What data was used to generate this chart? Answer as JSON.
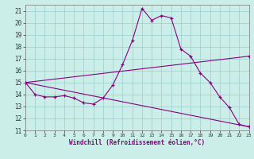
{
  "bg_color": "#cceee8",
  "line_color": "#880080",
  "grid_color": "#99cccc",
  "xlim": [
    0,
    23
  ],
  "ylim": [
    11,
    21.5
  ],
  "yticks": [
    11,
    12,
    13,
    14,
    15,
    16,
    17,
    18,
    19,
    20,
    21
  ],
  "xticks": [
    0,
    1,
    2,
    3,
    4,
    5,
    6,
    7,
    8,
    9,
    10,
    11,
    12,
    13,
    14,
    15,
    16,
    17,
    18,
    19,
    20,
    21,
    22,
    23
  ],
  "xlabel": "Windchill (Refroidissement éolien,°C)",
  "curve_x": [
    0,
    1,
    2,
    3,
    4,
    5,
    6,
    7,
    8,
    9,
    10,
    11,
    12,
    13,
    14,
    15,
    16,
    17,
    18,
    19,
    20,
    21,
    22,
    23
  ],
  "curve_y": [
    15.0,
    14.0,
    13.8,
    13.8,
    13.9,
    13.7,
    13.3,
    13.2,
    13.7,
    14.8,
    16.5,
    18.5,
    21.2,
    20.2,
    20.6,
    20.4,
    17.8,
    17.2,
    15.8,
    15.0,
    13.8,
    12.9,
    11.5,
    11.3
  ],
  "upper_line_x": [
    0,
    23
  ],
  "upper_line_y": [
    15.0,
    17.2
  ],
  "lower_line_x": [
    0,
    23
  ],
  "lower_line_y": [
    15.0,
    11.3
  ]
}
